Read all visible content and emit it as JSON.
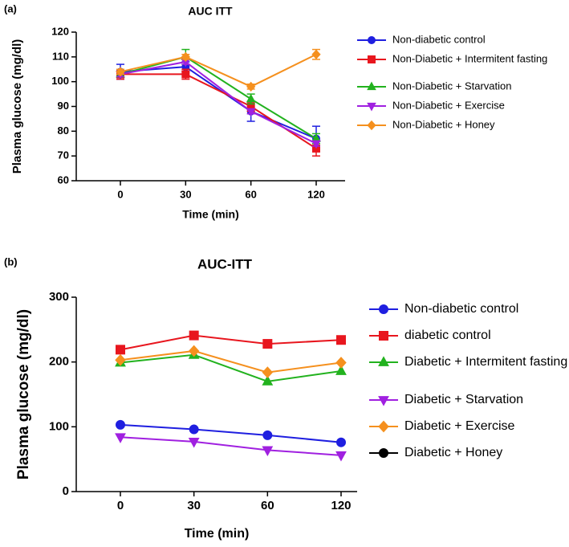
{
  "chart_data": [
    {
      "type": "line",
      "panel": "(a)",
      "title": "AUC ITT",
      "ylabel": "Plasma glucose (mg/dl)",
      "xlabel": "Time (min)",
      "categories": [
        "0",
        "30",
        "60",
        "120"
      ],
      "ylim": [
        60,
        120
      ],
      "yticks": [
        60,
        70,
        80,
        90,
        100,
        110,
        120
      ],
      "series": [
        {
          "name": "Non-diabetic control",
          "color": "#1f1fe0",
          "marker": "circle",
          "values": [
            104,
            106,
            88,
            77
          ],
          "errors": [
            3,
            2,
            4,
            5
          ]
        },
        {
          "name": "Non-Diabetic + Intermitent fasting",
          "color": "#e8161e",
          "marker": "square",
          "values": [
            103,
            103,
            90,
            73
          ],
          "errors": [
            2,
            2,
            2,
            3
          ]
        },
        {
          "name": "Non-Diabetic + Starvation",
          "color": "#22b21e",
          "marker": "triangle",
          "values": [
            103,
            110,
            93,
            77
          ],
          "errors": [
            1,
            3,
            2,
            2
          ]
        },
        {
          "name": "Non-Diabetic + Exercise",
          "color": "#a020e0",
          "marker": "triangle-down",
          "values": [
            103,
            108,
            88,
            75
          ],
          "errors": [
            1,
            1,
            1,
            1
          ]
        },
        {
          "name": "Non-Diabetic + Honey",
          "color": "#f5901e",
          "marker": "diamond",
          "values": [
            104,
            110,
            98,
            111
          ],
          "errors": [
            1,
            1,
            1,
            2
          ]
        }
      ]
    },
    {
      "type": "line",
      "panel": "(b)",
      "title": "AUC-ITT",
      "ylabel": "Plasma glucose (mg/dl)",
      "xlabel": "Time (min)",
      "categories": [
        "0",
        "30",
        "60",
        "120"
      ],
      "ylim": [
        0,
        300
      ],
      "yticks": [
        0,
        100,
        200,
        300
      ],
      "series": [
        {
          "name": "Non-diabetic control",
          "color": "#1f1fe0",
          "marker": "circle",
          "values": [
            103,
            96,
            87,
            76
          ]
        },
        {
          "name": "diabetic control",
          "color": "#e8161e",
          "marker": "square",
          "values": [
            219,
            241,
            228,
            234
          ]
        },
        {
          "name": "Diabetic + Intermitent fasting",
          "color": "#22b21e",
          "marker": "triangle",
          "values": [
            199,
            211,
            170,
            186
          ]
        },
        {
          "name": "Diabetic + Starvation",
          "color": "#a020e0",
          "marker": "triangle-down",
          "values": [
            84,
            77,
            64,
            56
          ]
        },
        {
          "name": "Diabetic + Exercise",
          "color": "#f5901e",
          "marker": "diamond",
          "values": [
            203,
            217,
            184,
            199
          ]
        },
        {
          "name": "Diabetic + Honey",
          "color": "#000000",
          "marker": "circle",
          "values": [
            null,
            null,
            null,
            null
          ]
        }
      ]
    }
  ]
}
